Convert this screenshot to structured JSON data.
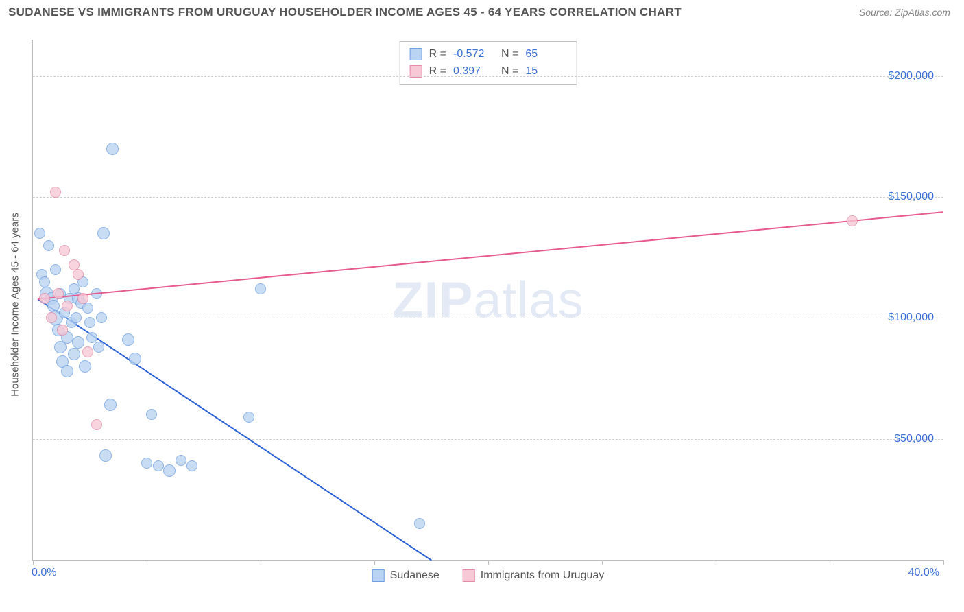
{
  "header": {
    "title": "SUDANESE VS IMMIGRANTS FROM URUGUAY HOUSEHOLDER INCOME AGES 45 - 64 YEARS CORRELATION CHART",
    "source": "Source: ZipAtlas.com"
  },
  "chart": {
    "type": "scatter",
    "y_axis_label": "Householder Income Ages 45 - 64 years",
    "x_min_label": "0.0%",
    "x_max_label": "40.0%",
    "xlim": [
      0,
      40
    ],
    "ylim": [
      0,
      215000
    ],
    "x_ticks": [
      0,
      5,
      10,
      15,
      20,
      25,
      30,
      35,
      40
    ],
    "y_ticks": [
      50000,
      100000,
      150000,
      200000
    ],
    "y_tick_labels": [
      "$50,000",
      "$100,000",
      "$150,000",
      "$200,000"
    ],
    "grid_color": "#d0d0d0",
    "axis_color": "#bfbfbf",
    "background_color": "#ffffff",
    "watermark": {
      "text_bold": "ZIP",
      "text_light": "atlas"
    },
    "series": [
      {
        "name": "Sudanese",
        "fill": "#b9d3f2",
        "stroke": "#6f9fe0",
        "line_color": "#2a62d6",
        "r_label": "R =",
        "r_value": "-0.572",
        "n_label": "N =",
        "n_value": "65",
        "trend": {
          "x1": 0.2,
          "y1": 108000,
          "x2": 17.5,
          "y2": 0
        },
        "points": [
          {
            "x": 0.3,
            "y": 135000,
            "r": 8
          },
          {
            "x": 0.4,
            "y": 118000,
            "r": 8
          },
          {
            "x": 0.5,
            "y": 115000,
            "r": 8
          },
          {
            "x": 0.6,
            "y": 110000,
            "r": 10
          },
          {
            "x": 0.7,
            "y": 130000,
            "r": 8
          },
          {
            "x": 0.8,
            "y": 108000,
            "r": 9
          },
          {
            "x": 0.9,
            "y": 105000,
            "r": 9
          },
          {
            "x": 1.0,
            "y": 120000,
            "r": 8
          },
          {
            "x": 1.0,
            "y": 100000,
            "r": 11
          },
          {
            "x": 1.1,
            "y": 95000,
            "r": 9
          },
          {
            "x": 1.2,
            "y": 88000,
            "r": 9
          },
          {
            "x": 1.2,
            "y": 110000,
            "r": 8
          },
          {
            "x": 1.3,
            "y": 82000,
            "r": 9
          },
          {
            "x": 1.4,
            "y": 102000,
            "r": 8
          },
          {
            "x": 1.5,
            "y": 92000,
            "r": 9
          },
          {
            "x": 1.5,
            "y": 78000,
            "r": 9
          },
          {
            "x": 1.6,
            "y": 108000,
            "r": 8
          },
          {
            "x": 1.7,
            "y": 98000,
            "r": 8
          },
          {
            "x": 1.8,
            "y": 85000,
            "r": 9
          },
          {
            "x": 1.8,
            "y": 112000,
            "r": 8
          },
          {
            "x": 1.9,
            "y": 100000,
            "r": 8
          },
          {
            "x": 2.0,
            "y": 108000,
            "r": 9
          },
          {
            "x": 2.0,
            "y": 90000,
            "r": 9
          },
          {
            "x": 2.1,
            "y": 106000,
            "r": 8
          },
          {
            "x": 2.2,
            "y": 115000,
            "r": 8
          },
          {
            "x": 2.3,
            "y": 80000,
            "r": 9
          },
          {
            "x": 2.4,
            "y": 104000,
            "r": 8
          },
          {
            "x": 2.5,
            "y": 98000,
            "r": 8
          },
          {
            "x": 2.6,
            "y": 92000,
            "r": 8
          },
          {
            "x": 2.8,
            "y": 110000,
            "r": 8
          },
          {
            "x": 2.9,
            "y": 88000,
            "r": 8
          },
          {
            "x": 3.0,
            "y": 100000,
            "r": 8
          },
          {
            "x": 3.1,
            "y": 135000,
            "r": 9
          },
          {
            "x": 3.2,
            "y": 43000,
            "r": 9
          },
          {
            "x": 3.4,
            "y": 64000,
            "r": 9
          },
          {
            "x": 3.5,
            "y": 170000,
            "r": 9
          },
          {
            "x": 4.2,
            "y": 91000,
            "r": 9
          },
          {
            "x": 4.5,
            "y": 83000,
            "r": 9
          },
          {
            "x": 5.0,
            "y": 40000,
            "r": 8
          },
          {
            "x": 5.2,
            "y": 60000,
            "r": 8
          },
          {
            "x": 5.5,
            "y": 39000,
            "r": 8
          },
          {
            "x": 6.0,
            "y": 37000,
            "r": 9
          },
          {
            "x": 6.5,
            "y": 41000,
            "r": 8
          },
          {
            "x": 7.0,
            "y": 39000,
            "r": 8
          },
          {
            "x": 9.5,
            "y": 59000,
            "r": 8
          },
          {
            "x": 10.0,
            "y": 112000,
            "r": 8
          },
          {
            "x": 17.0,
            "y": 15000,
            "r": 8
          }
        ]
      },
      {
        "name": "Immigrants from Uruguay",
        "fill": "#f7c9d6",
        "stroke": "#e48aa5",
        "line_color": "#e75a8d",
        "r_label": "R =",
        "r_value": "0.397",
        "n_label": "N =",
        "n_value": "15",
        "trend": {
          "x1": 0.2,
          "y1": 108000,
          "x2": 40,
          "y2": 144000
        },
        "points": [
          {
            "x": 0.5,
            "y": 108000,
            "r": 8
          },
          {
            "x": 0.8,
            "y": 100000,
            "r": 8
          },
          {
            "x": 1.0,
            "y": 152000,
            "r": 8
          },
          {
            "x": 1.1,
            "y": 110000,
            "r": 8
          },
          {
            "x": 1.3,
            "y": 95000,
            "r": 8
          },
          {
            "x": 1.4,
            "y": 128000,
            "r": 8
          },
          {
            "x": 1.5,
            "y": 105000,
            "r": 8
          },
          {
            "x": 1.8,
            "y": 122000,
            "r": 8
          },
          {
            "x": 2.0,
            "y": 118000,
            "r": 8
          },
          {
            "x": 2.2,
            "y": 108000,
            "r": 8
          },
          {
            "x": 2.4,
            "y": 86000,
            "r": 8
          },
          {
            "x": 2.8,
            "y": 56000,
            "r": 8
          },
          {
            "x": 36.0,
            "y": 140000,
            "r": 8
          }
        ]
      }
    ],
    "legend": [
      {
        "swatch_fill": "#b9d3f2",
        "swatch_stroke": "#6f9fe0",
        "label": "Sudanese"
      },
      {
        "swatch_fill": "#f7c9d6",
        "swatch_stroke": "#e48aa5",
        "label": "Immigrants from Uruguay"
      }
    ]
  }
}
